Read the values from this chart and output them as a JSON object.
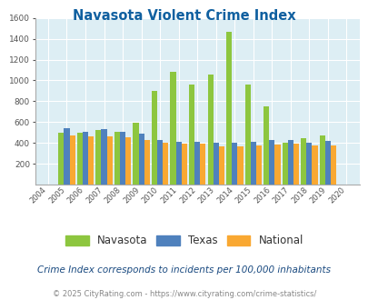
{
  "title": "Navasota Violent Crime Index",
  "subtitle": "Crime Index corresponds to incidents per 100,000 inhabitants",
  "footer": "© 2025 CityRating.com - https://www.cityrating.com/crime-statistics/",
  "years": [
    2004,
    2005,
    2006,
    2007,
    2008,
    2009,
    2010,
    2011,
    2012,
    2013,
    2014,
    2015,
    2016,
    2017,
    2018,
    2019,
    2020
  ],
  "navasota": [
    0,
    500,
    500,
    520,
    510,
    595,
    900,
    1080,
    960,
    1060,
    1470,
    960,
    750,
    400,
    445,
    470,
    0
  ],
  "texas": [
    0,
    540,
    510,
    530,
    505,
    490,
    430,
    410,
    410,
    405,
    400,
    410,
    425,
    430,
    405,
    420,
    0
  ],
  "national": [
    0,
    470,
    460,
    460,
    455,
    430,
    400,
    390,
    395,
    370,
    365,
    375,
    385,
    390,
    375,
    375,
    0
  ],
  "navasota_color": "#8dc63f",
  "texas_color": "#4f81bd",
  "national_color": "#f9a832",
  "bg_color": "#ddeef4",
  "title_color": "#1060a0",
  "subtitle_color": "#1a4a80",
  "footer_color": "#888888",
  "ylim": [
    0,
    1600
  ],
  "yticks": [
    0,
    200,
    400,
    600,
    800,
    1000,
    1200,
    1400,
    1600
  ]
}
